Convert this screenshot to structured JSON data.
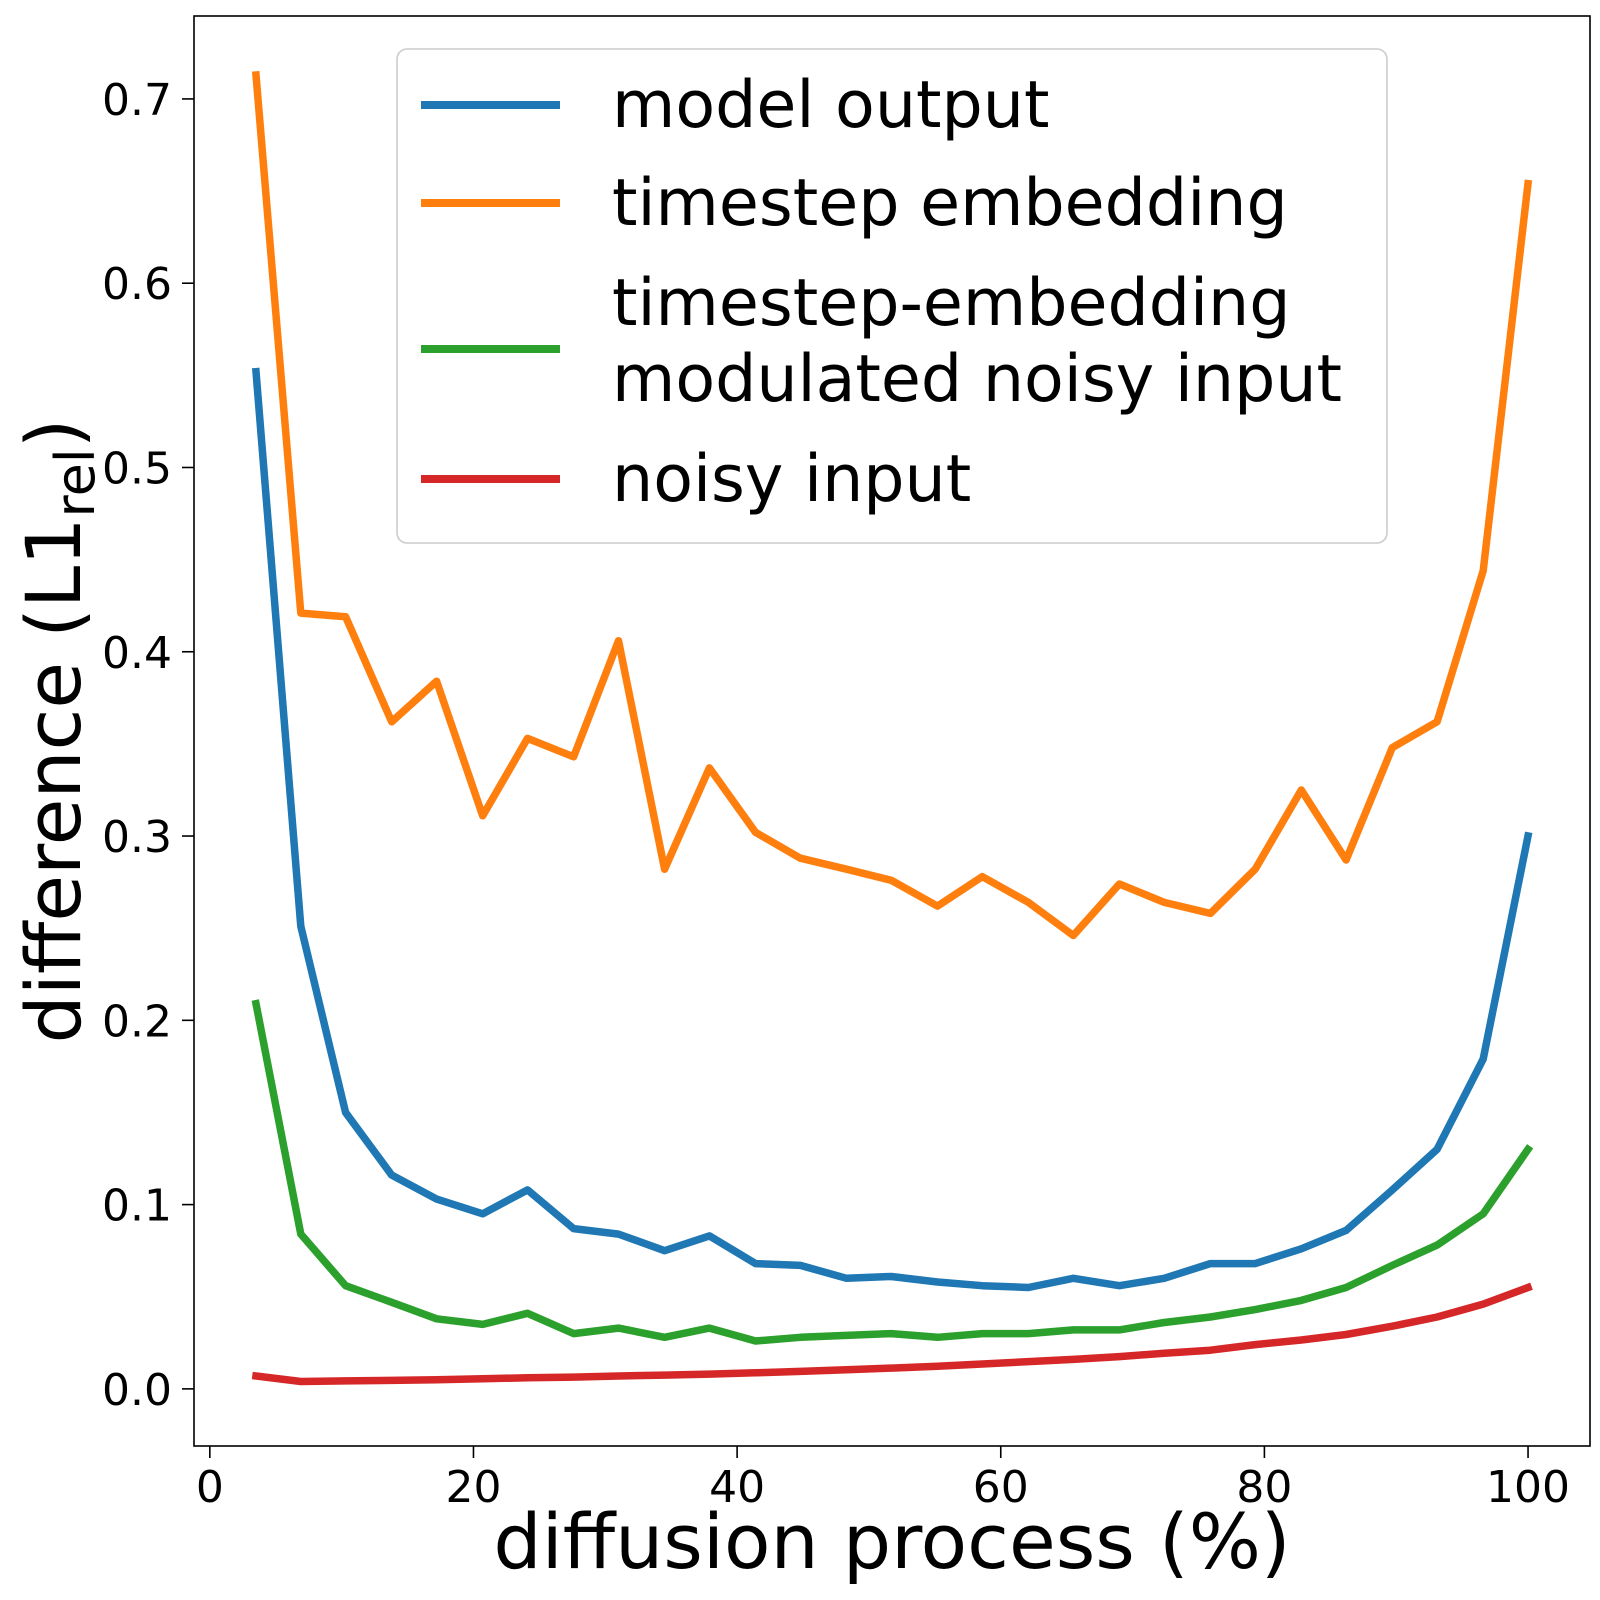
{
  "chart_data": {
    "type": "line",
    "title": "",
    "xlabel": "diffusion process (%)",
    "ylabel": {
      "main": "difference (L1",
      "sub": "rel",
      "close": ")"
    },
    "xlim": [
      -1.2,
      104.7
    ],
    "ylim": [
      -0.031,
      0.745
    ],
    "xticks": [
      0,
      20,
      40,
      60,
      80,
      100
    ],
    "xtick_labels": [
      "0",
      "20",
      "40",
      "60",
      "80",
      "100"
    ],
    "yticks": [
      0.0,
      0.1,
      0.2,
      0.3,
      0.4,
      0.5,
      0.6,
      0.7
    ],
    "ytick_labels": [
      "0.0",
      "0.1",
      "0.2",
      "0.3",
      "0.4",
      "0.5",
      "0.6",
      "0.7"
    ],
    "grid": false,
    "legend_position": "top-center",
    "x": [
      3.5,
      6.9,
      10.3,
      13.8,
      17.2,
      20.7,
      24.1,
      27.6,
      31.0,
      34.5,
      37.9,
      41.4,
      44.8,
      48.3,
      51.7,
      55.2,
      58.6,
      62.1,
      65.5,
      69.0,
      72.4,
      75.9,
      79.3,
      82.8,
      86.2,
      89.7,
      93.1,
      96.6,
      100.0
    ],
    "series": [
      {
        "name": "model output",
        "color": "#1f77b4",
        "values": [
          0.552,
          0.251,
          0.15,
          0.116,
          0.103,
          0.095,
          0.108,
          0.087,
          0.084,
          0.075,
          0.083,
          0.068,
          0.067,
          0.06,
          0.061,
          0.058,
          0.056,
          0.055,
          0.06,
          0.056,
          0.06,
          0.068,
          0.068,
          0.076,
          0.086,
          0.108,
          0.13,
          0.179,
          0.3
        ]
      },
      {
        "name": "timestep embedding",
        "color": "#ff7f0e",
        "values": [
          0.713,
          0.421,
          0.419,
          0.362,
          0.384,
          0.311,
          0.353,
          0.343,
          0.406,
          0.282,
          0.337,
          0.302,
          0.288,
          0.282,
          0.276,
          0.262,
          0.278,
          0.264,
          0.246,
          0.274,
          0.264,
          0.258,
          0.282,
          0.325,
          0.287,
          0.348,
          0.362,
          0.444,
          0.654
        ]
      },
      {
        "name": "timestep-embedding modulated noisy input",
        "legend_lines": [
          "timestep-embedding",
          "modulated noisy input"
        ],
        "color": "#2ca02c",
        "values": [
          0.209,
          0.084,
          0.056,
          0.047,
          0.038,
          0.035,
          0.041,
          0.03,
          0.033,
          0.028,
          0.033,
          0.026,
          0.028,
          0.029,
          0.03,
          0.028,
          0.03,
          0.03,
          0.032,
          0.032,
          0.036,
          0.039,
          0.043,
          0.048,
          0.055,
          0.067,
          0.078,
          0.095,
          0.13
        ]
      },
      {
        "name": "noisy input",
        "color": "#d62728",
        "values": [
          0.007,
          0.004,
          0.0043,
          0.0046,
          0.005,
          0.0055,
          0.006,
          0.0064,
          0.007,
          0.0075,
          0.008,
          0.0087,
          0.0095,
          0.0104,
          0.0113,
          0.0123,
          0.0135,
          0.0148,
          0.016,
          0.0175,
          0.0193,
          0.021,
          0.024,
          0.0265,
          0.0295,
          0.034,
          0.039,
          0.046,
          0.055
        ]
      }
    ]
  }
}
